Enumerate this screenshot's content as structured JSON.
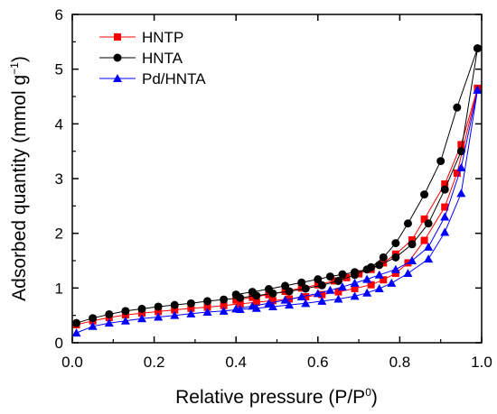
{
  "chart_data": {
    "type": "line",
    "xlabel": {
      "main": "Relative pressure (P/P",
      "sup": "0",
      "end": ")"
    },
    "ylabel": {
      "main": "Adsorbed quantity (mmol g",
      "sup": "−1",
      "end": ")"
    },
    "xlim": [
      0.0,
      1.0
    ],
    "ylim": [
      0,
      6
    ],
    "x_ticks": [
      "0.0",
      "0.2",
      "0.4",
      "0.6",
      "0.8",
      "1.0"
    ],
    "y_ticks": [
      "0",
      "1",
      "2",
      "3",
      "4",
      "5",
      "6"
    ],
    "legend_position": "top-left",
    "series": [
      {
        "name": "HNTP",
        "color": "#ff0000",
        "marker": "square",
        "adsorption": {
          "x": [
            0.01,
            0.05,
            0.09,
            0.13,
            0.17,
            0.21,
            0.25,
            0.29,
            0.33,
            0.37,
            0.41,
            0.45,
            0.49,
            0.53,
            0.57,
            0.61,
            0.65,
            0.69,
            0.73,
            0.76,
            0.79,
            0.82,
            0.86,
            0.91,
            0.94,
            0.99
          ],
          "y": [
            0.33,
            0.4,
            0.46,
            0.51,
            0.54,
            0.57,
            0.6,
            0.63,
            0.65,
            0.68,
            0.71,
            0.74,
            0.77,
            0.8,
            0.84,
            0.88,
            0.93,
            0.99,
            1.06,
            1.15,
            1.27,
            1.46,
            1.87,
            2.48,
            3.1,
            4.65
          ]
        },
        "desorption": {
          "x": [
            0.99,
            0.95,
            0.91,
            0.86,
            0.83,
            0.79,
            0.76,
            0.73,
            0.7,
            0.67,
            0.64,
            0.6,
            0.56,
            0.52,
            0.48,
            0.44,
            0.4
          ],
          "y": [
            4.65,
            3.62,
            2.9,
            2.26,
            1.88,
            1.62,
            1.46,
            1.34,
            1.26,
            1.19,
            1.13,
            1.06,
            1.0,
            0.94,
            0.88,
            0.83,
            0.78
          ]
        }
      },
      {
        "name": "HNTA",
        "color": "#000000",
        "marker": "circle",
        "adsorption": {
          "x": [
            0.01,
            0.05,
            0.09,
            0.13,
            0.17,
            0.21,
            0.25,
            0.29,
            0.33,
            0.37,
            0.41,
            0.45,
            0.49,
            0.53,
            0.57,
            0.61,
            0.65,
            0.69,
            0.73,
            0.76,
            0.79,
            0.82,
            0.86,
            0.9,
            0.94,
            0.99
          ],
          "y": [
            0.36,
            0.45,
            0.52,
            0.58,
            0.62,
            0.66,
            0.69,
            0.72,
            0.76,
            0.79,
            0.82,
            0.86,
            0.9,
            0.94,
            0.99,
            1.05,
            1.13,
            1.24,
            1.38,
            1.56,
            1.82,
            2.18,
            2.71,
            3.32,
            4.3,
            5.38
          ]
        },
        "desorption": {
          "x": [
            0.99,
            0.95,
            0.91,
            0.87,
            0.83,
            0.79,
            0.75,
            0.72,
            0.69,
            0.66,
            0.63,
            0.6,
            0.56,
            0.52,
            0.48,
            0.44,
            0.4
          ],
          "y": [
            5.38,
            3.5,
            2.8,
            2.18,
            1.8,
            1.56,
            1.42,
            1.34,
            1.29,
            1.25,
            1.21,
            1.16,
            1.1,
            1.04,
            0.98,
            0.93,
            0.88
          ]
        }
      },
      {
        "name": "Pd/HNTA",
        "color": "#0000ff",
        "marker": "triangle",
        "adsorption": {
          "x": [
            0.01,
            0.05,
            0.09,
            0.13,
            0.17,
            0.21,
            0.25,
            0.29,
            0.33,
            0.37,
            0.41,
            0.45,
            0.49,
            0.53,
            0.57,
            0.61,
            0.65,
            0.69,
            0.72,
            0.75,
            0.78,
            0.82,
            0.87,
            0.91,
            0.95,
            0.99
          ],
          "y": [
            0.18,
            0.3,
            0.36,
            0.4,
            0.44,
            0.47,
            0.5,
            0.53,
            0.56,
            0.58,
            0.61,
            0.63,
            0.66,
            0.69,
            0.72,
            0.76,
            0.8,
            0.85,
            0.91,
            0.99,
            1.09,
            1.27,
            1.53,
            2.02,
            2.73,
            4.62
          ]
        },
        "desorption": {
          "x": [
            0.99,
            0.95,
            0.91,
            0.87,
            0.83,
            0.79,
            0.75,
            0.72,
            0.69,
            0.66,
            0.63,
            0.6,
            0.56,
            0.52,
            0.48,
            0.44,
            0.4
          ],
          "y": [
            4.62,
            3.2,
            2.3,
            1.75,
            1.5,
            1.34,
            1.24,
            1.16,
            1.09,
            1.02,
            0.96,
            0.9,
            0.84,
            0.78,
            0.72,
            0.67,
            0.62
          ]
        }
      }
    ]
  }
}
